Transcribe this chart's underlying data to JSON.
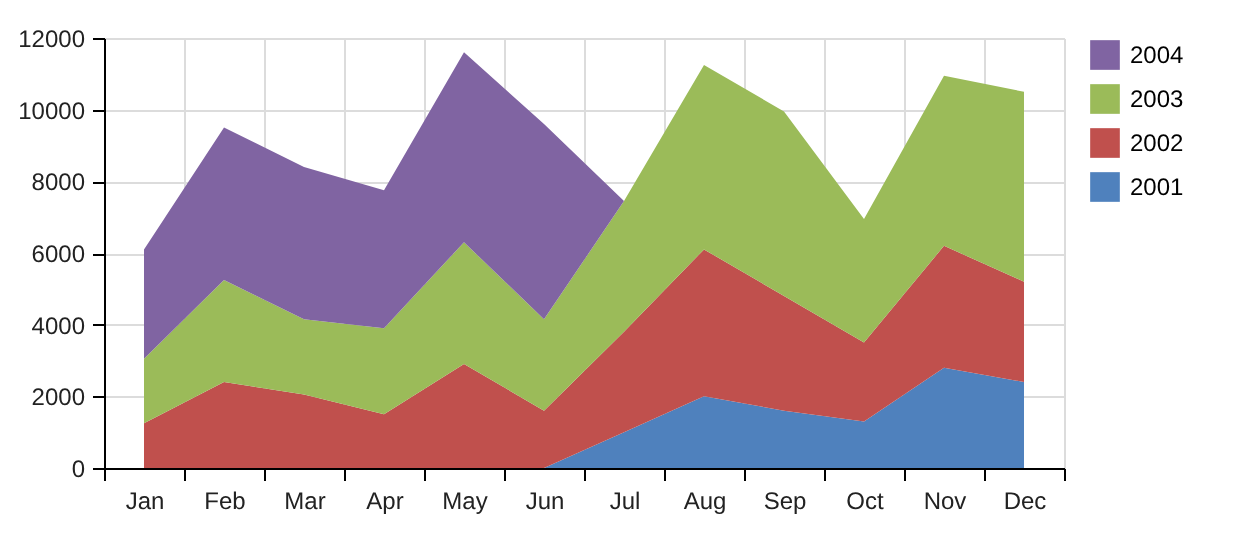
{
  "chart_data": {
    "type": "area",
    "stacked": true,
    "categories": [
      "Jan",
      "Feb",
      "Mar",
      "Apr",
      "May",
      "Jun",
      "Jul",
      "Aug",
      "Sep",
      "Oct",
      "Nov",
      "Dec"
    ],
    "series": [
      {
        "name": "2001",
        "color": "#4f81bd",
        "values": [
          0,
          0,
          0,
          0,
          0,
          0,
          1000,
          2000,
          1600,
          1300,
          2800,
          2400
        ]
      },
      {
        "name": "2002",
        "color": "#c0504d",
        "values": [
          1250,
          2400,
          2050,
          1500,
          2900,
          1600,
          2800,
          4100,
          3200,
          2200,
          3400,
          2800
        ]
      },
      {
        "name": "2003",
        "color": "#9bbb59",
        "values": [
          1800,
          2850,
          2100,
          2400,
          3400,
          2550,
          3650,
          5150,
          5150,
          3450,
          4750,
          5300
        ]
      },
      {
        "name": "2004",
        "color": "#8064a2",
        "values": [
          3050,
          4250,
          4250,
          3850,
          5300,
          5450,
          0,
          0,
          0,
          0,
          0,
          0
        ]
      }
    ],
    "ylim": [
      0,
      12000
    ],
    "yticks": [
      0,
      2000,
      4000,
      6000,
      8000,
      10000,
      12000
    ],
    "grid": true,
    "legend": "right"
  }
}
